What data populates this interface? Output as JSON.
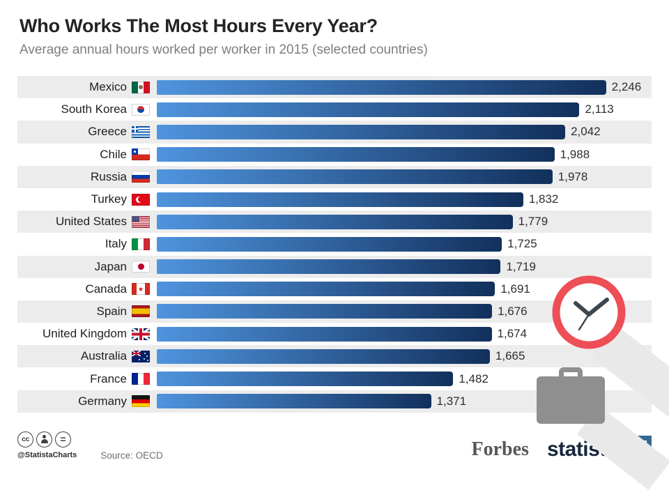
{
  "chart_data": {
    "type": "bar",
    "orientation": "horizontal",
    "title": "Who Works The Most Hours Every Year?",
    "subtitle": "Average annual hours worked per worker in 2015 (selected countries)",
    "unit": "hours per year",
    "max_value": 2246,
    "xlim": [
      0,
      2246
    ],
    "categories": [
      "Mexico",
      "South Korea",
      "Greece",
      "Chile",
      "Russia",
      "Turkey",
      "United States",
      "Italy",
      "Japan",
      "Canada",
      "Spain",
      "United Kingdom",
      "Australia",
      "France",
      "Germany"
    ],
    "values": [
      2246,
      2113,
      2042,
      1988,
      1978,
      1832,
      1779,
      1725,
      1719,
      1691,
      1676,
      1674,
      1665,
      1482,
      1371
    ],
    "rows": [
      {
        "country": "Mexico",
        "flag": "mx",
        "value": 2246,
        "value_label": "2,246"
      },
      {
        "country": "South Korea",
        "flag": "kr",
        "value": 2113,
        "value_label": "2,113"
      },
      {
        "country": "Greece",
        "flag": "gr",
        "value": 2042,
        "value_label": "2,042"
      },
      {
        "country": "Chile",
        "flag": "cl",
        "value": 1988,
        "value_label": "1,988"
      },
      {
        "country": "Russia",
        "flag": "ru",
        "value": 1978,
        "value_label": "1,978"
      },
      {
        "country": "Turkey",
        "flag": "tr",
        "value": 1832,
        "value_label": "1,832"
      },
      {
        "country": "United States",
        "flag": "us",
        "value": 1779,
        "value_label": "1,779"
      },
      {
        "country": "Italy",
        "flag": "it",
        "value": 1725,
        "value_label": "1,725"
      },
      {
        "country": "Japan",
        "flag": "jp",
        "value": 1719,
        "value_label": "1,719"
      },
      {
        "country": "Canada",
        "flag": "ca",
        "value": 1691,
        "value_label": "1,691"
      },
      {
        "country": "Spain",
        "flag": "es",
        "value": 1676,
        "value_label": "1,676"
      },
      {
        "country": "United Kingdom",
        "flag": "gb",
        "value": 1674,
        "value_label": "1,674"
      },
      {
        "country": "Australia",
        "flag": "au",
        "value": 1665,
        "value_label": "1,665"
      },
      {
        "country": "France",
        "flag": "fr",
        "value": 1482,
        "value_label": "1,482"
      },
      {
        "country": "Germany",
        "flag": "de",
        "value": 1371,
        "value_label": "1,371"
      }
    ]
  },
  "footer": {
    "handle": "@StatistaCharts",
    "source": "Source: OECD",
    "forbes_label": "Forbes",
    "statista_label": "statista"
  },
  "colors": {
    "bar_gradient_start": "#4f94de",
    "bar_gradient_end": "#12305c",
    "row_stripe": "#ececec",
    "clock_ring_red": "#ee4e56",
    "icon_gray": "#8f8f8f",
    "statista_blue": "#35688f",
    "title_text": "#232323",
    "subtitle_text": "#7e7e7e"
  }
}
